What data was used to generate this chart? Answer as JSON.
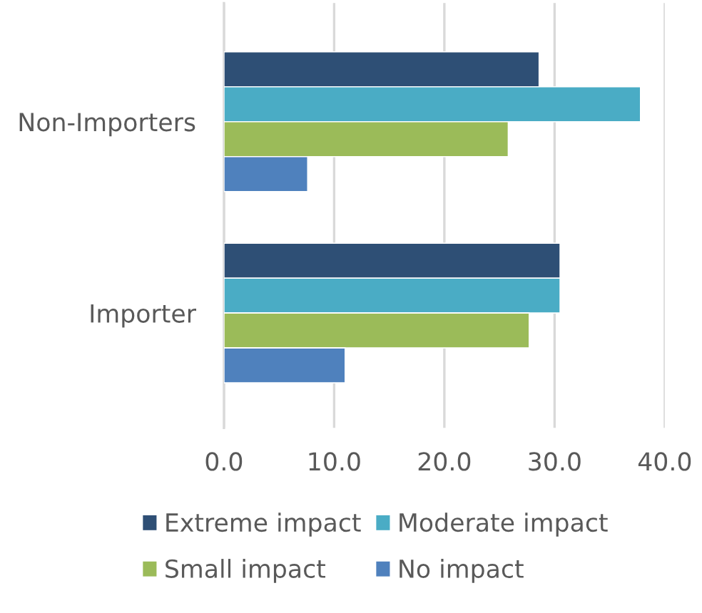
{
  "chart_data": {
    "type": "bar",
    "orientation": "horizontal",
    "categories": [
      "Non-Importers",
      "Importer"
    ],
    "series": [
      {
        "name": "Extreme impact",
        "color": "#2e4f75",
        "values": [
          28.6,
          30.5
        ]
      },
      {
        "name": "Moderate impact",
        "color": "#4aacc5",
        "values": [
          37.8,
          30.5
        ]
      },
      {
        "name": "Small impact",
        "color": "#9bbb59",
        "values": [
          25.8,
          27.7
        ]
      },
      {
        "name": "No impact",
        "color": "#4f81bd",
        "values": [
          7.6,
          11.0
        ]
      }
    ],
    "xlim": [
      0,
      40
    ],
    "xticks": [
      {
        "value": 0,
        "label": "0.0"
      },
      {
        "value": 10,
        "label": "10.0"
      },
      {
        "value": 20,
        "label": "20.0"
      },
      {
        "value": 30,
        "label": "30.0"
      },
      {
        "value": 40,
        "label": "40.0"
      }
    ],
    "grid": "x",
    "legend": "bottom"
  }
}
